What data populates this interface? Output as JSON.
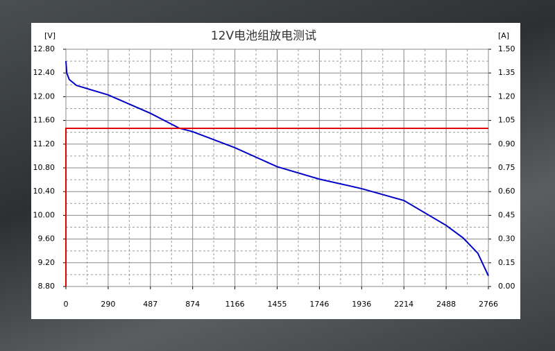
{
  "chart_data": {
    "type": "line",
    "title": "12Ⅴ电池组放电测试",
    "y_unit": "[V]",
    "y2_unit": "[A]",
    "xlim": [
      0,
      10
    ],
    "xticks": [
      {
        "value": 0,
        "label": "0"
      },
      {
        "value": 1,
        "label": "290"
      },
      {
        "value": 2,
        "label": "487"
      },
      {
        "value": 3,
        "label": "874"
      },
      {
        "value": 4,
        "label": "1166"
      },
      {
        "value": 5,
        "label": "1455"
      },
      {
        "value": 6,
        "label": "1746"
      },
      {
        "value": 7,
        "label": "1936"
      },
      {
        "value": 8,
        "label": "2214"
      },
      {
        "value": 9,
        "label": "2488"
      },
      {
        "value": 10,
        "label": "2766"
      }
    ],
    "ylim": [
      8.8,
      12.8
    ],
    "yticks": [
      {
        "value": 8.8,
        "label": "8.80"
      },
      {
        "value": 9.2,
        "label": "9.20"
      },
      {
        "value": 9.6,
        "label": "9.60"
      },
      {
        "value": 10,
        "label": "10.00"
      },
      {
        "value": 10.4,
        "label": "10.40"
      },
      {
        "value": 10.8,
        "label": "10.80"
      },
      {
        "value": 11.2,
        "label": "11.20"
      },
      {
        "value": 11.6,
        "label": "11.60"
      },
      {
        "value": 12,
        "label": "12.00"
      },
      {
        "value": 12.4,
        "label": "12.40"
      },
      {
        "value": 12.8,
        "label": "12.80"
      }
    ],
    "y2lim": [
      0,
      1.5
    ],
    "y2ticks": [
      {
        "value": 0,
        "label": "0.00"
      },
      {
        "value": 0.15,
        "label": "0.15"
      },
      {
        "value": 0.3,
        "label": "0.30"
      },
      {
        "value": 0.45,
        "label": "0.45"
      },
      {
        "value": 0.6,
        "label": "0.60"
      },
      {
        "value": 0.75,
        "label": "0.75"
      },
      {
        "value": 0.9,
        "label": "0.90"
      },
      {
        "value": 1.05,
        "label": "1.05"
      },
      {
        "value": 1.2,
        "label": "1.20"
      },
      {
        "value": 1.35,
        "label": "1.35"
      },
      {
        "value": 1.5,
        "label": "1.50"
      }
    ],
    "grid": true,
    "minor_grid": true,
    "series": [
      {
        "color": "#0000c8",
        "x": [
          0,
          0.02,
          0.08,
          0.25,
          1,
          2,
          2.68,
          3,
          4,
          5,
          6,
          7,
          8,
          9,
          9.4,
          9.75,
          10
        ],
        "values": [
          12.6,
          12.4,
          12.29,
          12.19,
          12.03,
          11.72,
          11.47,
          11.41,
          11.14,
          10.82,
          10.61,
          10.45,
          10.25,
          9.83,
          9.62,
          9.36,
          8.98
        ]
      },
      {
        "color": "#e00000",
        "axis": "y2",
        "x": [
          0,
          0,
          10
        ],
        "values": [
          0,
          1.0,
          1.0
        ]
      }
    ]
  }
}
